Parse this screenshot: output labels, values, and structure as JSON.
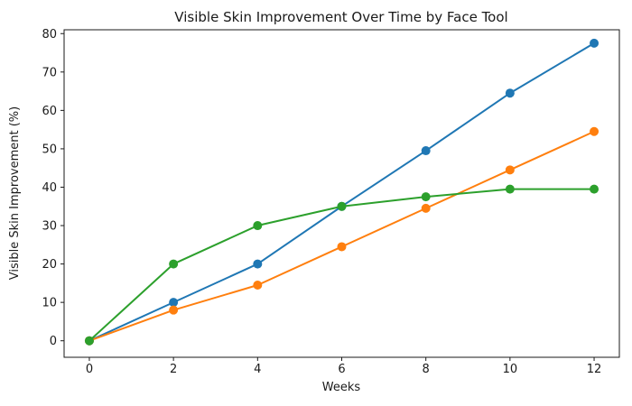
{
  "chart_data": {
    "type": "line",
    "title": "Visible Skin Improvement Over Time by Face Tool",
    "xlabel": "Weeks",
    "ylabel": "Visible Skin Improvement (%)",
    "x": [
      0,
      2,
      4,
      6,
      8,
      10,
      12
    ],
    "series": [
      {
        "name": "blue-series",
        "color": "#1f77b4",
        "values": [
          0,
          10,
          20,
          35,
          49.5,
          64.5,
          77.5
        ]
      },
      {
        "name": "orange-series",
        "color": "#ff7f0e",
        "values": [
          0,
          8,
          14.5,
          24.5,
          34.5,
          44.5,
          54.5
        ]
      },
      {
        "name": "green-series",
        "color": "#2ca02c",
        "values": [
          0,
          20,
          30,
          35,
          37.5,
          39.5,
          39.5
        ]
      }
    ],
    "x_ticks": [
      0,
      2,
      4,
      6,
      8,
      10,
      12
    ],
    "y_ticks": [
      0,
      10,
      20,
      30,
      40,
      50,
      60,
      70,
      80
    ],
    "xlim": [
      -0.6,
      12.6
    ],
    "ylim": [
      -4.3,
      81.0
    ],
    "grid": false,
    "legend": "none",
    "marker": "circle",
    "background_color": "#ffffff",
    "axis_color": "#1a1a1a"
  }
}
